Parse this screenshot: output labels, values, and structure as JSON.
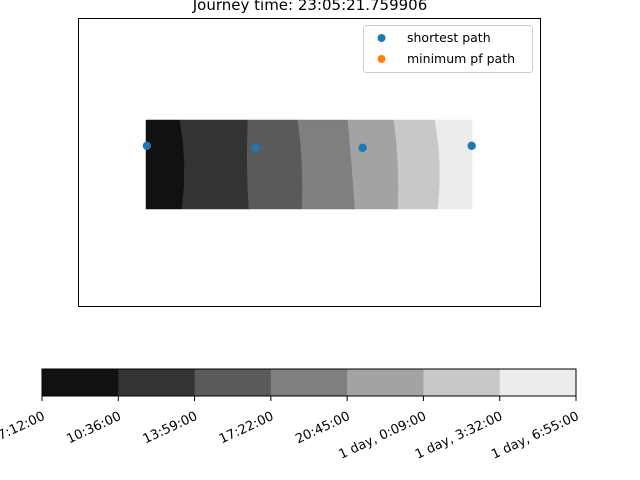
{
  "chart_data": {
    "type": "scatter",
    "title": "Journey time: 23:05:21.759906",
    "background": "contour bands of journey time",
    "legend": {
      "placement": "top-right",
      "entries": [
        {
          "label": "shortest path",
          "color": "#1f77b4"
        },
        {
          "label": "minimum pf path",
          "color": "#ff7f0e"
        }
      ]
    },
    "series": [
      {
        "name": "shortest path",
        "color": "#1f77b4",
        "points": [
          [
            0.148,
            0.442
          ],
          [
            0.383,
            0.449
          ],
          [
            0.615,
            0.449
          ],
          [
            0.851,
            0.442
          ]
        ]
      },
      {
        "name": "minimum pf path",
        "color": "#ff7f0e",
        "points": []
      }
    ],
    "contour_colors": [
      "#111111",
      "#333333",
      "#5a5a5a",
      "#7f7f7f",
      "#a3a3a3",
      "#c8c8c8",
      "#ececec"
    ],
    "colorbar": {
      "orientation": "horizontal",
      "ticks": [
        "7:12:00",
        "10:36:00",
        "13:59:00",
        "17:22:00",
        "20:45:00",
        "1 day, 0:09:00",
        "1 day, 3:32:00",
        "1 day, 6:55:00"
      ],
      "tick_rotation": 25
    },
    "axes_visible": false
  }
}
